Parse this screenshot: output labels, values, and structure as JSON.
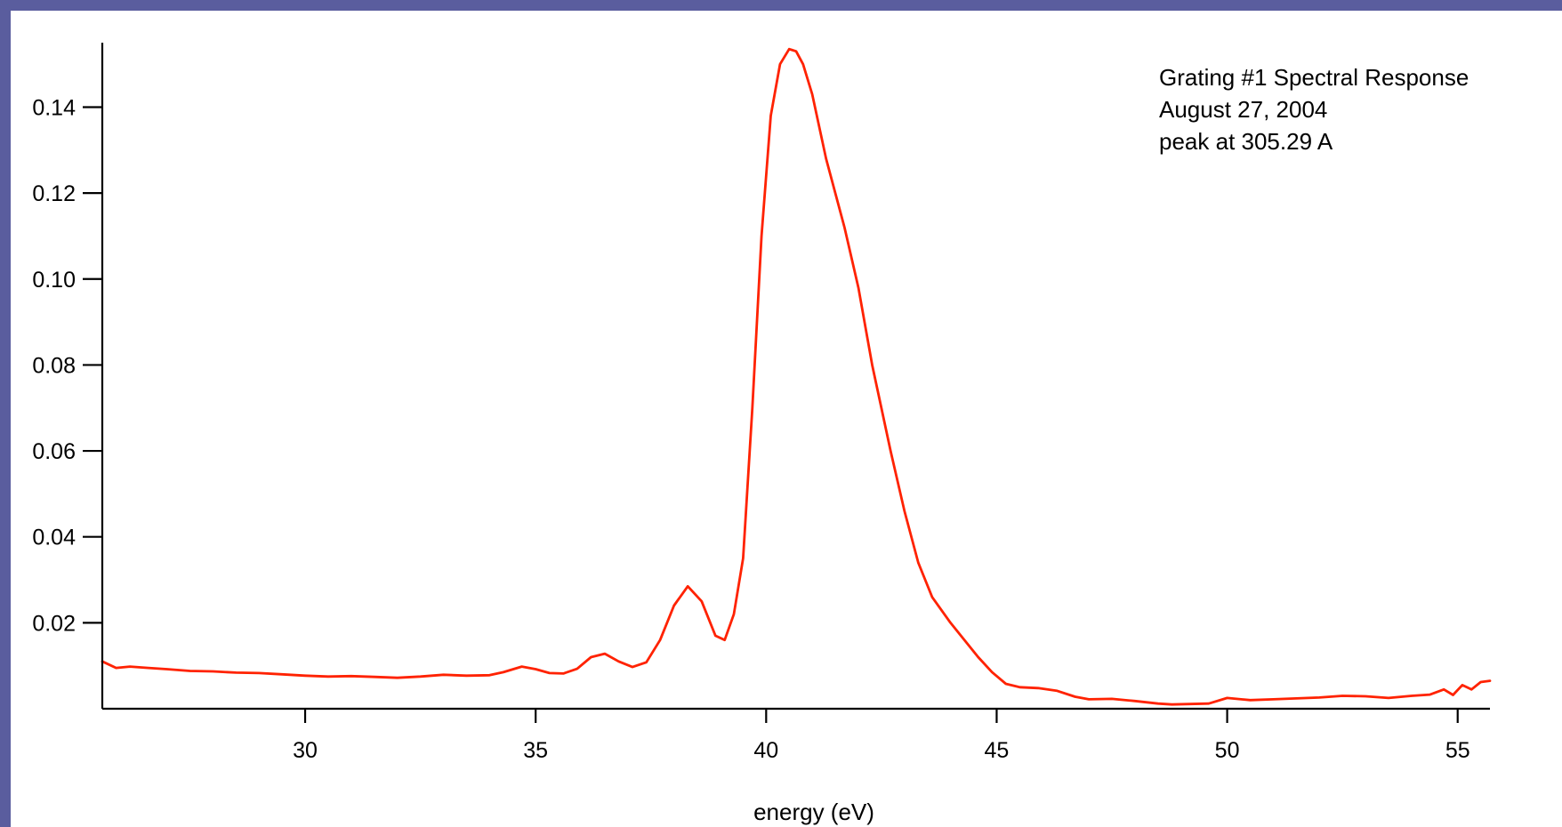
{
  "chart_data": {
    "type": "line",
    "title": "",
    "xlabel": "energy (eV)",
    "ylabel": "",
    "xlim": [
      25.6,
      55.7
    ],
    "ylim": [
      0.0,
      0.155
    ],
    "xticks": [
      30,
      35,
      40,
      45,
      50,
      55
    ],
    "yticks": [
      0.02,
      0.04,
      0.06,
      0.08,
      0.1,
      0.12,
      0.14
    ],
    "xtick_labels": [
      "30",
      "35",
      "40",
      "45",
      "50",
      "55"
    ],
    "ytick_labels": [
      "0.02",
      "0.04",
      "0.06",
      "0.08",
      "0.10",
      "0.12",
      "0.14"
    ],
    "annotations": [
      "Grating #1 Spectral Response",
      "August 27, 2004",
      "peak at 305.29 A"
    ],
    "grid": false,
    "legend": "none",
    "series": [
      {
        "color": "#ff2200",
        "x": [
          25.6,
          25.9,
          26.2,
          26.6,
          27.0,
          27.5,
          28.0,
          28.5,
          29.0,
          29.5,
          30.0,
          30.5,
          31.0,
          31.5,
          32.0,
          32.5,
          33.0,
          33.5,
          34.0,
          34.3,
          34.7,
          35.0,
          35.3,
          35.6,
          35.9,
          36.2,
          36.5,
          36.8,
          37.1,
          37.4,
          37.7,
          38.0,
          38.3,
          38.6,
          38.9,
          39.1,
          39.3,
          39.5,
          39.7,
          39.9,
          40.1,
          40.3,
          40.5,
          40.65,
          40.8,
          41.0,
          41.3,
          41.7,
          42.0,
          42.3,
          42.7,
          43.0,
          43.3,
          43.6,
          44.0,
          44.3,
          44.6,
          44.9,
          45.2,
          45.5,
          45.9,
          46.3,
          46.7,
          47.0,
          47.5,
          48.0,
          48.5,
          48.8,
          49.2,
          49.6,
          50.0,
          50.5,
          51.0,
          51.5,
          52.0,
          52.5,
          53.0,
          53.5,
          54.0,
          54.4,
          54.7,
          54.9,
          55.1,
          55.3,
          55.5,
          55.7
        ],
        "y": [
          0.011,
          0.0095,
          0.0098,
          0.0095,
          0.0092,
          0.0088,
          0.0087,
          0.0084,
          0.0083,
          0.008,
          0.0077,
          0.0075,
          0.0076,
          0.0074,
          0.0072,
          0.0075,
          0.0079,
          0.0077,
          0.0078,
          0.0085,
          0.0098,
          0.0092,
          0.0083,
          0.0082,
          0.0093,
          0.012,
          0.0128,
          0.011,
          0.0097,
          0.0108,
          0.016,
          0.024,
          0.0285,
          0.025,
          0.017,
          0.016,
          0.022,
          0.035,
          0.07,
          0.11,
          0.138,
          0.15,
          0.1535,
          0.153,
          0.15,
          0.143,
          0.128,
          0.112,
          0.098,
          0.08,
          0.06,
          0.046,
          0.034,
          0.026,
          0.02,
          0.016,
          0.012,
          0.0085,
          0.0058,
          0.005,
          0.0048,
          0.0042,
          0.0028,
          0.0022,
          0.0023,
          0.0018,
          0.0012,
          0.001,
          0.0011,
          0.0012,
          0.0025,
          0.002,
          0.0022,
          0.0024,
          0.0026,
          0.003,
          0.0029,
          0.0025,
          0.003,
          0.0033,
          0.0045,
          0.0032,
          0.0055,
          0.0045,
          0.0062,
          0.0065
        ]
      }
    ]
  }
}
